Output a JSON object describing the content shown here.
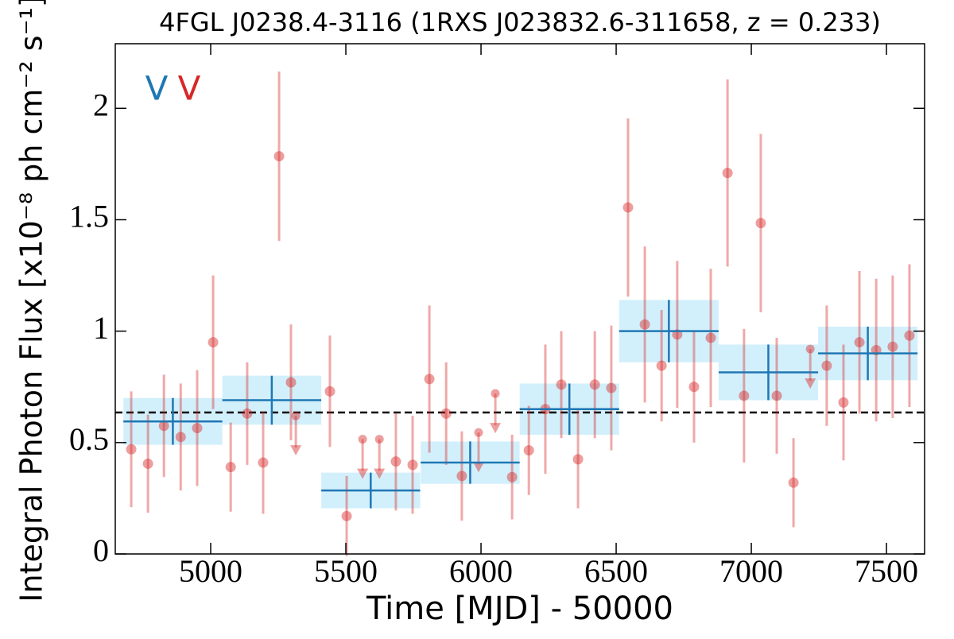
{
  "chart_data": {
    "type": "lightcurve",
    "title": "4FGL J0238.4-3116 (1RXS J023832.6-311658, z = 0.233)",
    "x_label": "Time [MJD] - 50000",
    "y_label": "Integral Photon Flux [x10⁻⁸ ph cm⁻² s⁻¹]",
    "annotations": [
      {
        "text": "V",
        "color": "#1f77b4"
      },
      {
        "text": "V",
        "color": "#d62728"
      }
    ],
    "xlim": [
      4647,
      7641
    ],
    "ylim": [
      0,
      2.29
    ],
    "xticks": [
      5000,
      5500,
      6000,
      6500,
      7000,
      7500
    ],
    "yticks": [
      0,
      0.5,
      1,
      1.5,
      2
    ],
    "reference_line": {
      "value": 0.635,
      "color": "#000000"
    },
    "yearly_bins": {
      "color": "#1f77b4",
      "band_color": "#cdeefb",
      "x": [
        4860,
        5226,
        5592,
        5960,
        6327,
        6695,
        7063,
        7431
      ],
      "xerr": [
        183,
        183,
        183,
        183,
        184,
        184,
        184,
        184
      ],
      "values": [
        0.595,
        0.69,
        0.285,
        0.41,
        0.65,
        1.0,
        0.815,
        0.9
      ],
      "yerr": [
        0.105,
        0.11,
        0.08,
        0.095,
        0.115,
        0.14,
        0.125,
        0.12
      ]
    },
    "monthly_points": {
      "color": "#d62728",
      "x": [
        4706,
        4768,
        4827,
        4889,
        4950,
        5009,
        5074,
        5135,
        5194,
        5253,
        5297,
        5441,
        5503,
        5685,
        5747,
        5809,
        5871,
        5929,
        6115,
        6177,
        6238,
        6297,
        6359,
        6421,
        6482,
        6544,
        6606,
        6668,
        6726,
        6788,
        6850,
        6912,
        6973,
        7035,
        7094,
        7156,
        7279,
        7341,
        7400,
        7462,
        7523,
        7585
      ],
      "values": [
        0.47,
        0.405,
        0.575,
        0.525,
        0.565,
        0.95,
        0.39,
        0.63,
        0.41,
        1.785,
        0.77,
        0.73,
        0.17,
        0.415,
        0.4,
        0.785,
        0.63,
        0.35,
        0.345,
        0.465,
        0.65,
        0.76,
        0.425,
        0.76,
        0.745,
        1.555,
        1.03,
        0.845,
        0.985,
        0.75,
        0.97,
        1.71,
        0.71,
        1.485,
        0.71,
        0.32,
        0.845,
        0.68,
        0.95,
        0.915,
        0.93,
        0.98
      ],
      "yerr": [
        0.26,
        0.22,
        0.23,
        0.24,
        0.26,
        0.3,
        0.2,
        0.23,
        0.23,
        0.38,
        0.26,
        0.25,
        0.18,
        0.22,
        0.22,
        0.33,
        0.23,
        0.2,
        0.19,
        0.2,
        0.29,
        0.24,
        0.22,
        0.24,
        0.28,
        0.4,
        0.35,
        0.25,
        0.33,
        0.25,
        0.31,
        0.42,
        0.3,
        0.4,
        0.26,
        0.2,
        0.27,
        0.26,
        0.32,
        0.32,
        0.32,
        0.32
      ]
    },
    "monthly_upper_limits": {
      "color": "#d62728",
      "x": [
        5315,
        5562,
        5624,
        5991,
        6053,
        7218
      ],
      "values": [
        0.62,
        0.515,
        0.515,
        0.545,
        0.72,
        0.92
      ]
    }
  }
}
